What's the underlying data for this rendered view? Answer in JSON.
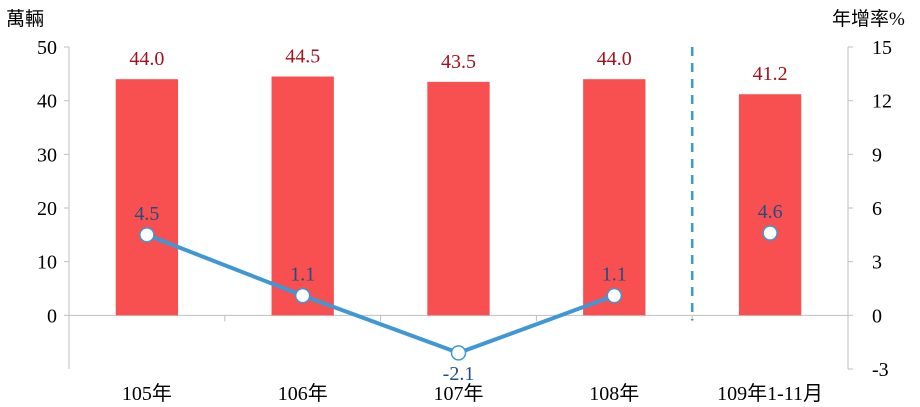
{
  "chart_data": {
    "type": "bar",
    "categories": [
      "105年",
      "106年",
      "107年",
      "108年",
      "109年1-11月"
    ],
    "series": [
      {
        "type": "bar",
        "axis": "left",
        "values": [
          44.0,
          44.5,
          43.5,
          44.0,
          41.2
        ],
        "labels": [
          "44.0",
          "44.5",
          "43.5",
          "44.0",
          "41.2"
        ]
      },
      {
        "type": "line",
        "axis": "right",
        "values": [
          4.5,
          1.1,
          -2.1,
          1.1,
          4.6
        ],
        "labels": [
          "4.5",
          "1.1",
          "-2.1",
          "1.1",
          "4.6"
        ],
        "connected": [
          true,
          true,
          true,
          true,
          false
        ]
      }
    ],
    "ylabel_left": "萬輛",
    "ylabel_right": "年增率%",
    "ylim_left": [
      -10,
      50
    ],
    "ylim_right": [
      -3,
      15
    ],
    "yticks_left": [
      "0",
      "10",
      "20",
      "30",
      "40",
      "50"
    ],
    "yticks_right": [
      "-3",
      "0",
      "3",
      "6",
      "9",
      "12",
      "15"
    ],
    "separator_after_category": 3,
    "grid": false,
    "colors": {
      "bar": "#f84f50",
      "bar_label": "#a3111a",
      "line": "#3f97d4",
      "line_label": "#1f4f82",
      "separator": "#3f97d4",
      "axis": "#bfbfbf",
      "text": "#000000"
    }
  }
}
